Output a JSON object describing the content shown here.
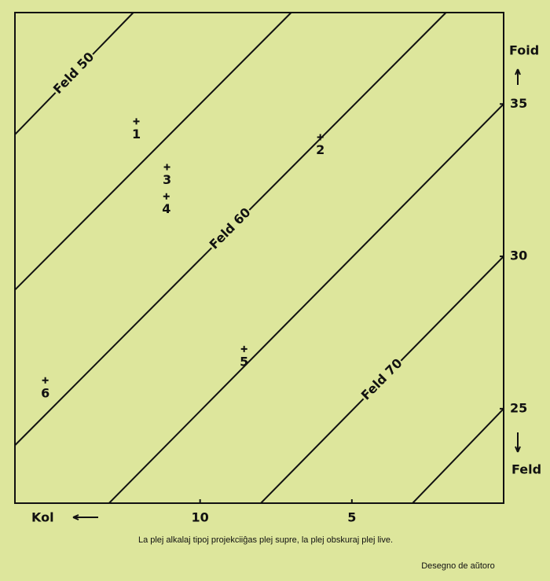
{
  "chart_data": {
    "type": "scatter",
    "xlim": [
      16.1,
      0
    ],
    "ylim": [
      21.9,
      38.0
    ],
    "xticks": [
      10,
      5
    ],
    "yticks": [
      25,
      30,
      35
    ],
    "xlabel": "Kol",
    "ylabels": [
      "Foid",
      "Feld"
    ],
    "color": "#111111",
    "points": {
      "labels": [
        "1",
        "2",
        "3",
        "4",
        "5",
        "6"
      ],
      "x": [
        12.1,
        6.04,
        11.09,
        11.11,
        8.55,
        15.1
      ],
      "y": [
        34.43,
        33.91,
        32.93,
        31.97,
        26.96,
        25.93
      ]
    },
    "contours": [
      {
        "label": "Feld 50",
        "x": [
          16.1,
          12.2
        ],
        "y": [
          34.0,
          38.0
        ]
      },
      {
        "x": [
          16.1,
          7.0
        ],
        "y": [
          28.9,
          38.0
        ]
      },
      {
        "label": "Feld 60",
        "x": [
          16.1,
          1.9
        ],
        "y": [
          23.8,
          38.0
        ]
      },
      {
        "x": [
          13.0,
          0
        ],
        "y": [
          21.9,
          35.0
        ]
      },
      {
        "label": "Feld 70",
        "x": [
          8.0,
          0
        ],
        "y": [
          21.9,
          30.0
        ]
      },
      {
        "x": [
          3.0,
          0
        ],
        "y": [
          21.9,
          25.0
        ]
      }
    ],
    "caption": "La plej alkalaj tipoj projekciiĝas plej supre, la plej obskuraj plej live.",
    "credit": "Desegno de aŭtoro"
  }
}
